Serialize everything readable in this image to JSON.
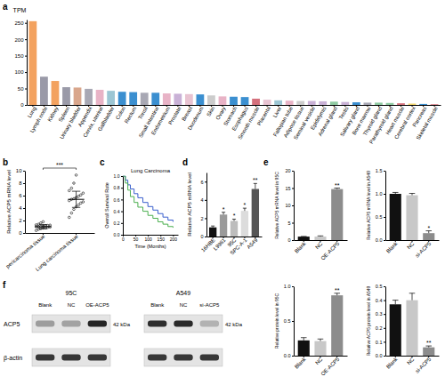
{
  "chart_data": [
    {
      "label": "a",
      "type": "bar",
      "y_label": "TPM",
      "categories": [
        "Lung",
        "Lymph node",
        "Kidney",
        "Spleen",
        "Urinary bladder",
        "Appendix",
        "Cervix, uterine",
        "Gallbladder",
        "Colon",
        "Rectum",
        "Tonsil",
        "Small intestine",
        "Endometrium",
        "Prostate",
        "Breast",
        "Duodenum",
        "Skin",
        "Ovary",
        "Stomach",
        "Esophagus",
        "Smooth muscle",
        "Placenta",
        "Liver",
        "Fallopian tube",
        "Adipose tissue",
        "Seminal vesicle",
        "Epididymis",
        "Adrenal gland",
        "Testis",
        "Salivary gland",
        "Bone marrow",
        "Thyroid gland",
        "Parathyroid gland",
        "Heart muscle",
        "Cerebral cortex",
        "Pancreas",
        "Skeletal muscle"
      ],
      "values": [
        255,
        86,
        73,
        54,
        53,
        49,
        46,
        43,
        40,
        39,
        37,
        37,
        35,
        34,
        33,
        32,
        29,
        26,
        25,
        24,
        19,
        16,
        14,
        13,
        12,
        12,
        11,
        10,
        9,
        8,
        7,
        7,
        6,
        5,
        4,
        3,
        2
      ],
      "colors": [
        "#f3a25f",
        "#9a9aa8",
        "#f3a25f",
        "#9a9aa8",
        "#d9a68c",
        "#a8a8b4",
        "#e8b3c6",
        "#9cc6d4",
        "#3b8fd0",
        "#3b8fd0",
        "#a8a8b4",
        "#3b8fd0",
        "#e8b3c6",
        "#c9b1d6",
        "#e8c3d1",
        "#3b8fd0",
        "#cccccc",
        "#e8b3c6",
        "#3b8fd0",
        "#3b8fd0",
        "#d4707c",
        "#e8c3d1",
        "#9cc6d4",
        "#e8b3c6",
        "#cccccc",
        "#c9b1d6",
        "#c9b1d6",
        "#8fcaa2",
        "#c9b1d6",
        "#3b8fd0",
        "#a8a8b4",
        "#8fcaa2",
        "#8fcaa2",
        "#d4707c",
        "#f0d46a",
        "#3b8fd0",
        "#d4707c"
      ],
      "ylim": [
        0,
        260
      ],
      "yticks": [
        0,
        50,
        100,
        150,
        200,
        250
      ]
    },
    {
      "label": "b",
      "type": "dot_plot",
      "y_label": "Relative ACP5 mRNA level",
      "categories": [
        "pericarcinoma tissue",
        "Lung carcinoma tissue"
      ],
      "values": [
        1.0,
        5.4
      ],
      "errors": [
        0.35,
        1.3
      ],
      "points": [
        [
          0.4,
          0.6,
          0.7,
          0.8,
          0.85,
          0.9,
          0.95,
          1.0,
          1.0,
          1.05,
          1.1,
          1.15,
          1.2,
          1.25,
          1.3,
          1.4,
          1.6,
          1.8
        ],
        [
          2.5,
          3.2,
          3.8,
          4.2,
          4.5,
          4.8,
          5.0,
          5.2,
          5.4,
          5.5,
          5.7,
          5.9,
          6.1,
          6.4,
          6.8,
          7.2,
          8.0,
          9.3
        ]
      ],
      "annotation": "***",
      "ylim": [
        0,
        10
      ],
      "yticks": [
        0,
        2,
        4,
        6,
        8,
        10
      ]
    },
    {
      "label": "c",
      "type": "line",
      "title": "Lung Carcinoma",
      "x_label": "Time (Months)",
      "y_label": "Overall Survival Rate",
      "line_style": "step",
      "series": [
        {
          "color": "#3a5fcd",
          "x": [
            0,
            10,
            20,
            30,
            45,
            60,
            80,
            100,
            120,
            140,
            160,
            180,
            200
          ],
          "values": [
            1.0,
            0.93,
            0.85,
            0.78,
            0.7,
            0.63,
            0.55,
            0.48,
            0.42,
            0.36,
            0.3,
            0.25,
            0.22
          ]
        },
        {
          "color": "#4caf50",
          "x": [
            0,
            10,
            20,
            30,
            45,
            60,
            80,
            100,
            120,
            140,
            160,
            180,
            200
          ],
          "values": [
            1.0,
            0.88,
            0.76,
            0.65,
            0.55,
            0.47,
            0.4,
            0.33,
            0.28,
            0.22,
            0.18,
            0.14,
            0.12
          ]
        }
      ],
      "xlim": [
        0,
        220
      ],
      "xticks": [
        0,
        50,
        100,
        150,
        200
      ],
      "ylim": [
        0,
        1
      ],
      "yticks": [
        {
          "value": 0,
          "label": "0.0"
        },
        {
          "value": 0.2,
          "label": "0.2"
        },
        {
          "value": 0.4,
          "label": "0.4"
        },
        {
          "value": 0.6,
          "label": "0.6"
        },
        {
          "value": 0.8,
          "label": "0.8"
        },
        {
          "value": 1,
          "label": "1.0"
        }
      ]
    },
    {
      "label": "d",
      "type": "bar",
      "y_label": "Relative ACP5 mRNA level",
      "categories": [
        "16HBE",
        "L9981",
        "95C",
        "SPC-A-1",
        "A549"
      ],
      "values": [
        1.0,
        2.4,
        1.7,
        2.8,
        5.2
      ],
      "errors": [
        0.15,
        0.25,
        0.2,
        0.3,
        0.6
      ],
      "significance": [
        null,
        "*",
        "*",
        "*",
        "**"
      ],
      "colors": [
        "#111111",
        "#9a9a9a",
        "#bdbdbd",
        "#dcdcdc",
        "#555555"
      ],
      "ylim": [
        0,
        7
      ],
      "yticks": [
        0,
        2,
        4,
        6
      ]
    },
    {
      "label": "e",
      "type": "bar",
      "y_label": "Relative ACP5 mRNA level in 95C",
      "categories": [
        "Blank",
        "NC",
        "OE-ACP5"
      ],
      "values": [
        1.0,
        1.0,
        14.7
      ],
      "errors": [
        0.05,
        0.2,
        0.3
      ],
      "significance": [
        null,
        null,
        "**"
      ],
      "colors": [
        "#111111",
        "#c8c8c8",
        "#8c8c8c"
      ],
      "ylim": [
        0,
        20
      ],
      "yticks": [
        0,
        5,
        10,
        15,
        20
      ]
    },
    {
      "type": "bar",
      "y_label": "Relative ACP5 mRNA level in A549",
      "categories": [
        "Blank",
        "NC",
        "si-ACP5"
      ],
      "values": [
        1.0,
        0.97,
        0.15
      ],
      "errors": [
        0.03,
        0.04,
        0.05
      ],
      "significance": [
        null,
        null,
        "*"
      ],
      "colors": [
        "#111111",
        "#c8c8c8",
        "#8c8c8c"
      ],
      "ylim": [
        0,
        1.5
      ],
      "yticks": [
        {
          "value": 0,
          "label": "0.0"
        },
        {
          "value": 0.5,
          "label": "0.5"
        },
        {
          "value": 1,
          "label": "1.0"
        },
        {
          "value": 1.5,
          "label": "1.5"
        }
      ]
    },
    {
      "type": "bar",
      "y_label": "Relative protein level in 95C",
      "categories": [
        "Blank",
        "NC",
        "OE-ACP5"
      ],
      "values": [
        0.22,
        0.21,
        0.87
      ],
      "errors": [
        0.04,
        0.03,
        0.03
      ],
      "significance": [
        null,
        null,
        "**"
      ],
      "colors": [
        "#111111",
        "#c8c8c8",
        "#8c8c8c"
      ],
      "ylim": [
        0,
        1
      ],
      "yticks": [
        {
          "value": 0,
          "label": "0.0"
        },
        {
          "value": 0.5,
          "label": "0.5"
        },
        {
          "value": 1,
          "label": "1.0"
        }
      ]
    },
    {
      "type": "bar",
      "y_label": "Relative ACP5 protein level in A549",
      "categories": [
        "Blank",
        "NC",
        "si-ACP5"
      ],
      "values": [
        0.37,
        0.4,
        0.06
      ],
      "errors": [
        0.03,
        0.05,
        0.01
      ],
      "significance": [
        null,
        null,
        "**"
      ],
      "colors": [
        "#111111",
        "#c8c8c8",
        "#8c8c8c"
      ],
      "ylim": [
        0,
        0.5
      ],
      "yticks": [
        {
          "value": 0,
          "label": "0.0"
        },
        {
          "value": 0.1,
          "label": "0.1"
        },
        {
          "value": 0.2,
          "label": "0.2"
        },
        {
          "value": 0.3,
          "label": "0.3"
        },
        {
          "value": 0.4,
          "label": "0.4"
        },
        {
          "value": 0.5,
          "label": "0.5"
        }
      ]
    }
  ],
  "blot": {
    "label": "f",
    "rows": [
      "ACP5",
      "β-actin"
    ],
    "groups": [
      {
        "name": "95C",
        "lanes": [
          "Blank",
          "NC",
          "OE-ACP5"
        ],
        "size": "42 kDa"
      },
      {
        "name": "A549",
        "lanes": [
          "Blank",
          "NC",
          "si-ACP5"
        ],
        "size": "42 kDa"
      }
    ]
  }
}
